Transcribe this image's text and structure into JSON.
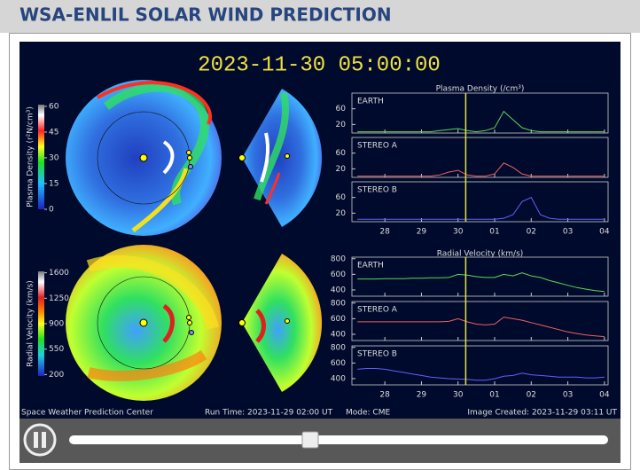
{
  "header": {
    "title": "WSA-ENLIL SOLAR WIND PREDICTION"
  },
  "animation": {
    "timestamp": "2023-11-30 05:00:00",
    "footer": {
      "credit": "Space Weather Prediction Center",
      "run_time": "Run Time: 2023-11-29 02:00 UT",
      "mode": "Mode: CME",
      "image_created": "Image Created: 2023-11-29 03:11 UT"
    }
  },
  "colorbars": [
    {
      "label": "Plasma Density (r²N/cm³)",
      "lim": [
        0,
        61
      ],
      "ticks": [
        60,
        45,
        30,
        15,
        0
      ]
    },
    {
      "label": "Radial Velocity (km/s)",
      "lim": [
        180,
        1620
      ],
      "ticks": [
        1600,
        1250,
        900,
        550,
        200
      ]
    }
  ],
  "chart_data": [
    {
      "type": "line",
      "title": "Plasma Density (/cm³)",
      "log_y": true,
      "x": [
        -0.75,
        -0.5,
        -0.25,
        0,
        0.25,
        0.5,
        0.75,
        1,
        1.25,
        1.5,
        1.75,
        2,
        2.25,
        2.5,
        2.75,
        3,
        3.25,
        3.5,
        3.75,
        4,
        4.25,
        4.5,
        4.75,
        5,
        5.25,
        5.5,
        5.75,
        6
      ],
      "xlim": [
        -0.9,
        6.1
      ],
      "xticks": [
        {
          "value": 0,
          "label": "28"
        },
        {
          "value": 1,
          "label": "29"
        },
        {
          "value": 2,
          "label": "30"
        },
        {
          "value": 3,
          "label": "01"
        },
        {
          "value": 4,
          "label": "02"
        },
        {
          "value": 5,
          "label": "03"
        },
        {
          "value": 6,
          "label": "04"
        }
      ],
      "current_x": 2.21,
      "current_color": "#e8e040",
      "ylim": [
        11,
        180
      ],
      "yticks": [
        60,
        20
      ],
      "series": [
        {
          "name": "EARTH",
          "color": "#5ad85a",
          "values": [
            12,
            12,
            12,
            12,
            12,
            12,
            12,
            12,
            12,
            13,
            14,
            15,
            13,
            12,
            13,
            16,
            50,
            28,
            16,
            13,
            12,
            12,
            12,
            12,
            12,
            12,
            12,
            12
          ]
        },
        {
          "name": "STEREO A",
          "color": "#f06060",
          "values": [
            12,
            12,
            12,
            12,
            12,
            12,
            12,
            12,
            12,
            13,
            16,
            18,
            13,
            12,
            12,
            14,
            30,
            22,
            14,
            12,
            12,
            12,
            12,
            12,
            12,
            12,
            12,
            12
          ]
        },
        {
          "name": "STEREO B",
          "color": "#6060ff",
          "values": [
            13,
            13,
            13,
            13,
            13,
            13,
            13,
            13,
            13,
            13,
            13,
            13,
            13,
            13,
            13,
            13,
            14,
            18,
            45,
            60,
            18,
            14,
            13,
            13,
            13,
            13,
            13,
            13
          ]
        }
      ]
    },
    {
      "type": "line",
      "title": "Radial Velocity (km/s)",
      "log_y": false,
      "x": [
        -0.75,
        -0.5,
        -0.25,
        0,
        0.25,
        0.5,
        0.75,
        1,
        1.25,
        1.5,
        1.75,
        2,
        2.25,
        2.5,
        2.75,
        3,
        3.25,
        3.5,
        3.75,
        4,
        4.25,
        4.5,
        4.75,
        5,
        5.25,
        5.5,
        5.75,
        6
      ],
      "xlim": [
        -0.9,
        6.1
      ],
      "xticks": [
        {
          "value": 0,
          "label": "28"
        },
        {
          "value": 1,
          "label": "29"
        },
        {
          "value": 2,
          "label": "30"
        },
        {
          "value": 3,
          "label": "01"
        },
        {
          "value": 4,
          "label": "02"
        },
        {
          "value": 5,
          "label": "03"
        },
        {
          "value": 6,
          "label": "04"
        }
      ],
      "current_x": 2.21,
      "current_color": "#e8e040",
      "ylim": [
        320,
        820
      ],
      "yticks": [
        800,
        600,
        400
      ],
      "series": [
        {
          "name": "EARTH",
          "color": "#5ad85a",
          "values": [
            540,
            540,
            540,
            545,
            545,
            545,
            550,
            550,
            555,
            555,
            560,
            600,
            590,
            570,
            560,
            560,
            600,
            580,
            620,
            580,
            560,
            520,
            490,
            460,
            430,
            410,
            390,
            380
          ]
        },
        {
          "name": "STEREO A",
          "color": "#f06060",
          "values": [
            560,
            560,
            560,
            560,
            560,
            560,
            560,
            560,
            560,
            560,
            565,
            600,
            560,
            530,
            520,
            530,
            620,
            600,
            580,
            550,
            520,
            490,
            460,
            430,
            410,
            390,
            380,
            370
          ]
        },
        {
          "name": "STEREO B",
          "color": "#6060ff",
          "values": [
            520,
            530,
            530,
            520,
            500,
            480,
            460,
            440,
            420,
            410,
            400,
            395,
            390,
            380,
            380,
            400,
            430,
            440,
            470,
            450,
            440,
            430,
            420,
            420,
            420,
            410,
            410,
            420
          ]
        }
      ]
    }
  ]
}
